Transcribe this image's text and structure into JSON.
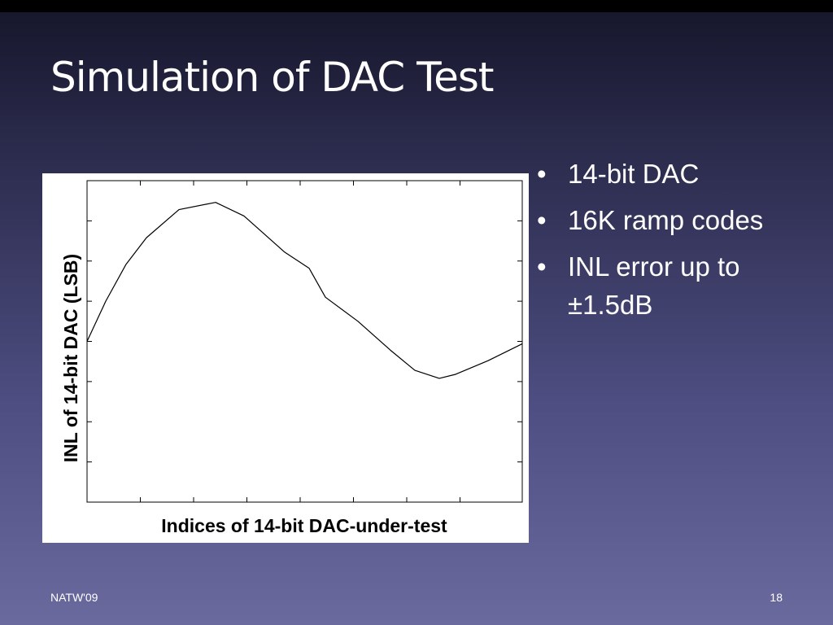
{
  "slide": {
    "title": "Simulation of DAC Test",
    "bullets": [
      "14-bit DAC",
      "16K ramp codes",
      "INL error up to ±1.5dB"
    ],
    "footer": {
      "left": "NATW'09",
      "right": "18"
    }
  },
  "chart_data": {
    "type": "line",
    "x_label": "Indices of 14-bit DAC-under-test",
    "y_label": "INL of 14-bit DAC (LSB)",
    "x": [
      0,
      704,
      1470,
      2236,
      3461,
      4839,
      5911,
      7442,
      8361,
      8973,
      10198,
      11423,
      12342,
      13260,
      13873,
      15098,
      16384
    ],
    "series": [
      {
        "color": "#000000",
        "values": [
          0.0,
          0.5,
          0.96,
          1.29,
          1.64,
          1.73,
          1.56,
          1.11,
          0.91,
          0.55,
          0.25,
          -0.11,
          -0.36,
          -0.46,
          -0.41,
          -0.24,
          -0.03
        ]
      }
    ],
    "xlim": [
      0,
      16384
    ],
    "ylim": [
      -2,
      2
    ]
  }
}
